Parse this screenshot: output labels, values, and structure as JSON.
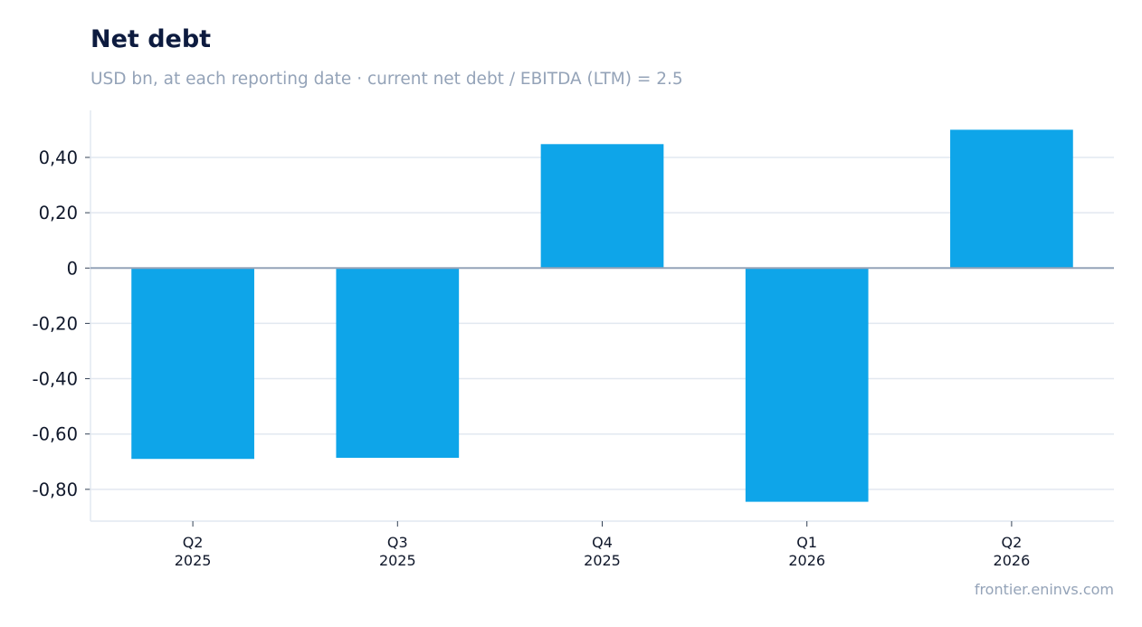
{
  "chart_data": {
    "type": "bar",
    "title": "Net debt",
    "subtitle": "USD bn, at each reporting date · current net debt / EBITDA (LTM) = 2.5",
    "categories": [
      [
        "Q2",
        "2025"
      ],
      [
        "Q3",
        "2025"
      ],
      [
        "Q4",
        "2025"
      ],
      [
        "Q1",
        "2026"
      ],
      [
        "Q2",
        "2026"
      ]
    ],
    "values": [
      -0.69,
      -0.686,
      0.448,
      -0.845,
      0.5
    ],
    "xlabel": "",
    "ylabel": "",
    "ylim": [
      -0.915,
      0.57
    ],
    "yticks": [
      0.4,
      0.2,
      0,
      -0.2,
      -0.4,
      -0.6,
      -0.8
    ],
    "ytick_labels": [
      "0,40",
      "0,20",
      "0",
      "-0,20",
      "-0,40",
      "-0,60",
      "-0,80"
    ],
    "grid": true,
    "legend": "none",
    "bar_color": "#0ea5e9",
    "grid_color": "#e2e8f0",
    "zero_line_color": "#94a3b8"
  },
  "source": "frontier.eninvs.com"
}
